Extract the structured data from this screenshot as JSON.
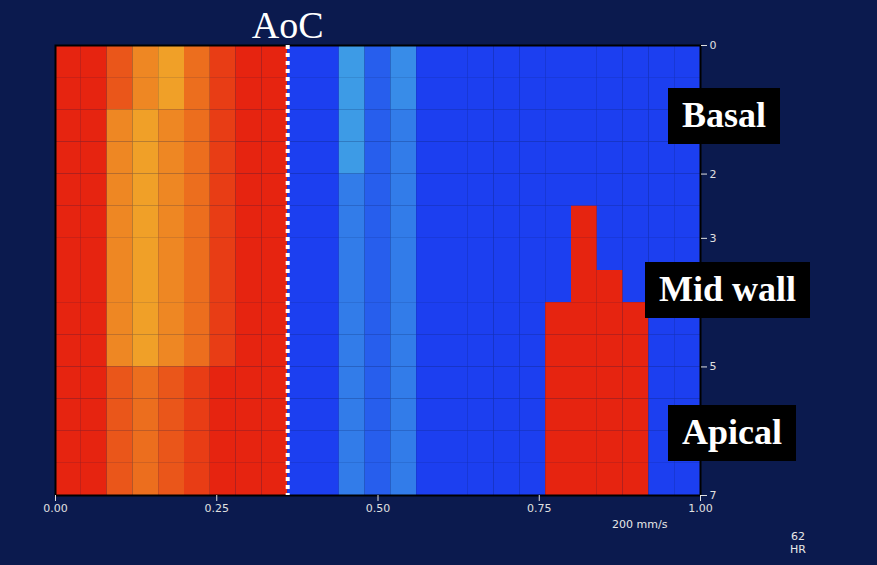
{
  "chart_data": {
    "type": "heatmap",
    "xlim": [
      0,
      1
    ],
    "ylim": [
      0,
      7
    ],
    "xticks": [
      {
        "value": 0,
        "label": "0.00"
      },
      {
        "value": 0.25,
        "label": "0.25"
      },
      {
        "value": 0.5,
        "label": "0.50"
      },
      {
        "value": 0.75,
        "label": "0.75"
      },
      {
        "value": 1,
        "label": "1.00"
      }
    ],
    "yticks": [
      0,
      2,
      3,
      5,
      7
    ],
    "zlim": [
      -1,
      1.5
    ],
    "x_bins": [
      0,
      0.04,
      0.08,
      0.12,
      0.16,
      0.2,
      0.24,
      0.28,
      0.32,
      0.36,
      0.4,
      0.44,
      0.48,
      0.52,
      0.56,
      0.6,
      0.64,
      0.68,
      0.72,
      0.76,
      0.8,
      0.84,
      0.88,
      0.92,
      0.96,
      1
    ],
    "y_bins": [
      0,
      0.5,
      1,
      1.5,
      2,
      2.5,
      3,
      3.5,
      4,
      4.5,
      5,
      5.5,
      6,
      6.5,
      7
    ],
    "cells": [
      [
        1,
        1,
        1.2,
        1.4,
        1.5,
        1.3,
        1.1,
        1,
        1,
        -1,
        -1,
        -0.4,
        -0.8,
        -0.5,
        -1,
        -1,
        -1,
        -1,
        -1,
        -1,
        -1,
        -1,
        -1,
        -1,
        -1
      ],
      [
        1,
        1,
        1.2,
        1.4,
        1.5,
        1.3,
        1.1,
        1,
        1,
        -1,
        -1,
        -0.4,
        -0.8,
        -0.5,
        -1,
        -1,
        -1,
        -1,
        -1,
        -1,
        -1,
        -1,
        -1,
        -1,
        -1
      ],
      [
        1,
        1,
        1.4,
        1.5,
        1.4,
        1.3,
        1.1,
        1,
        1,
        -1,
        -1,
        -0.4,
        -0.8,
        -0.6,
        -1,
        -1,
        -1,
        -1,
        -1,
        -1,
        -1,
        -1,
        -1,
        -1,
        -1
      ],
      [
        1,
        1,
        1.4,
        1.5,
        1.4,
        1.3,
        1.1,
        1,
        1,
        -1,
        -1,
        -0.4,
        -0.8,
        -0.6,
        -1,
        -1,
        -1,
        -1,
        -1,
        -1,
        -1,
        -1,
        -1,
        -1,
        -1
      ],
      [
        1,
        1,
        1.4,
        1.5,
        1.4,
        1.3,
        1.1,
        1,
        1,
        -1,
        -1,
        -0.6,
        -0.8,
        -0.6,
        -1,
        -1,
        -1,
        -1,
        -1,
        -1,
        -1,
        -1,
        -1,
        -1,
        -1
      ],
      [
        1,
        1,
        1.4,
        1.5,
        1.4,
        1.3,
        1.1,
        1,
        1,
        -1,
        -1,
        -0.6,
        -0.8,
        -0.6,
        -1,
        -1,
        -1,
        -1,
        -1,
        -1,
        1,
        -1,
        -1,
        -1,
        -1
      ],
      [
        1,
        1,
        1.4,
        1.5,
        1.4,
        1.3,
        1.1,
        1,
        1,
        -1,
        -1,
        -0.6,
        -0.8,
        -0.6,
        -1,
        -1,
        -1,
        -1,
        -1,
        -1,
        1,
        -1,
        -1,
        -1,
        -1
      ],
      [
        1,
        1,
        1.4,
        1.5,
        1.4,
        1.3,
        1.1,
        1,
        1,
        -1,
        -1,
        -0.6,
        -0.8,
        -0.6,
        -1,
        -1,
        -1,
        -1,
        -1,
        -1,
        1,
        1,
        -1,
        -1,
        -1
      ],
      [
        1,
        1,
        1.4,
        1.5,
        1.4,
        1.3,
        1.1,
        1,
        1,
        -1,
        -1,
        -0.6,
        -0.8,
        -0.6,
        -1,
        -1,
        -1,
        -1,
        -1,
        1,
        1,
        1,
        1,
        -1,
        -1
      ],
      [
        1,
        1,
        1.4,
        1.5,
        1.4,
        1.3,
        1.1,
        1,
        1,
        -1,
        -1,
        -0.6,
        -0.8,
        -0.6,
        -1,
        -1,
        -1,
        -1,
        -1,
        1,
        1,
        1,
        1,
        -1,
        -1
      ],
      [
        1,
        1,
        1.2,
        1.3,
        1.2,
        1.1,
        1,
        1,
        1,
        -1,
        -1,
        -0.6,
        -0.8,
        -0.6,
        -1,
        -1,
        -1,
        -1,
        -1,
        1,
        1,
        1,
        1,
        -1,
        -1
      ],
      [
        1,
        1,
        1.2,
        1.3,
        1.2,
        1.1,
        1,
        1,
        1,
        -1,
        -1,
        -0.6,
        -0.8,
        -0.6,
        -1,
        -1,
        -1,
        -1,
        -1,
        1,
        1,
        1,
        1,
        -1,
        -1
      ],
      [
        1,
        1,
        1.2,
        1.3,
        1.2,
        1.1,
        1,
        1,
        1,
        -1,
        -1,
        -0.6,
        -0.8,
        -0.6,
        -1,
        -1,
        -1,
        -1,
        -1,
        1,
        1,
        1,
        1,
        -1,
        -1
      ],
      [
        1,
        1,
        1.2,
        1.3,
        1.2,
        1.1,
        1,
        1,
        1,
        -1,
        -1,
        -0.6,
        -0.8,
        -0.6,
        -1,
        -1,
        -1,
        -1,
        -1,
        1,
        1,
        1,
        1,
        -1,
        -1
      ]
    ],
    "aortic_closure": {
      "label": "AoC",
      "x": 0.36
    },
    "region_labels": [
      "Basal",
      "Mid wall",
      "Apical"
    ],
    "sweep_label": "200 mm/s",
    "heart_rate": 62,
    "heart_rate_label": "HR"
  }
}
